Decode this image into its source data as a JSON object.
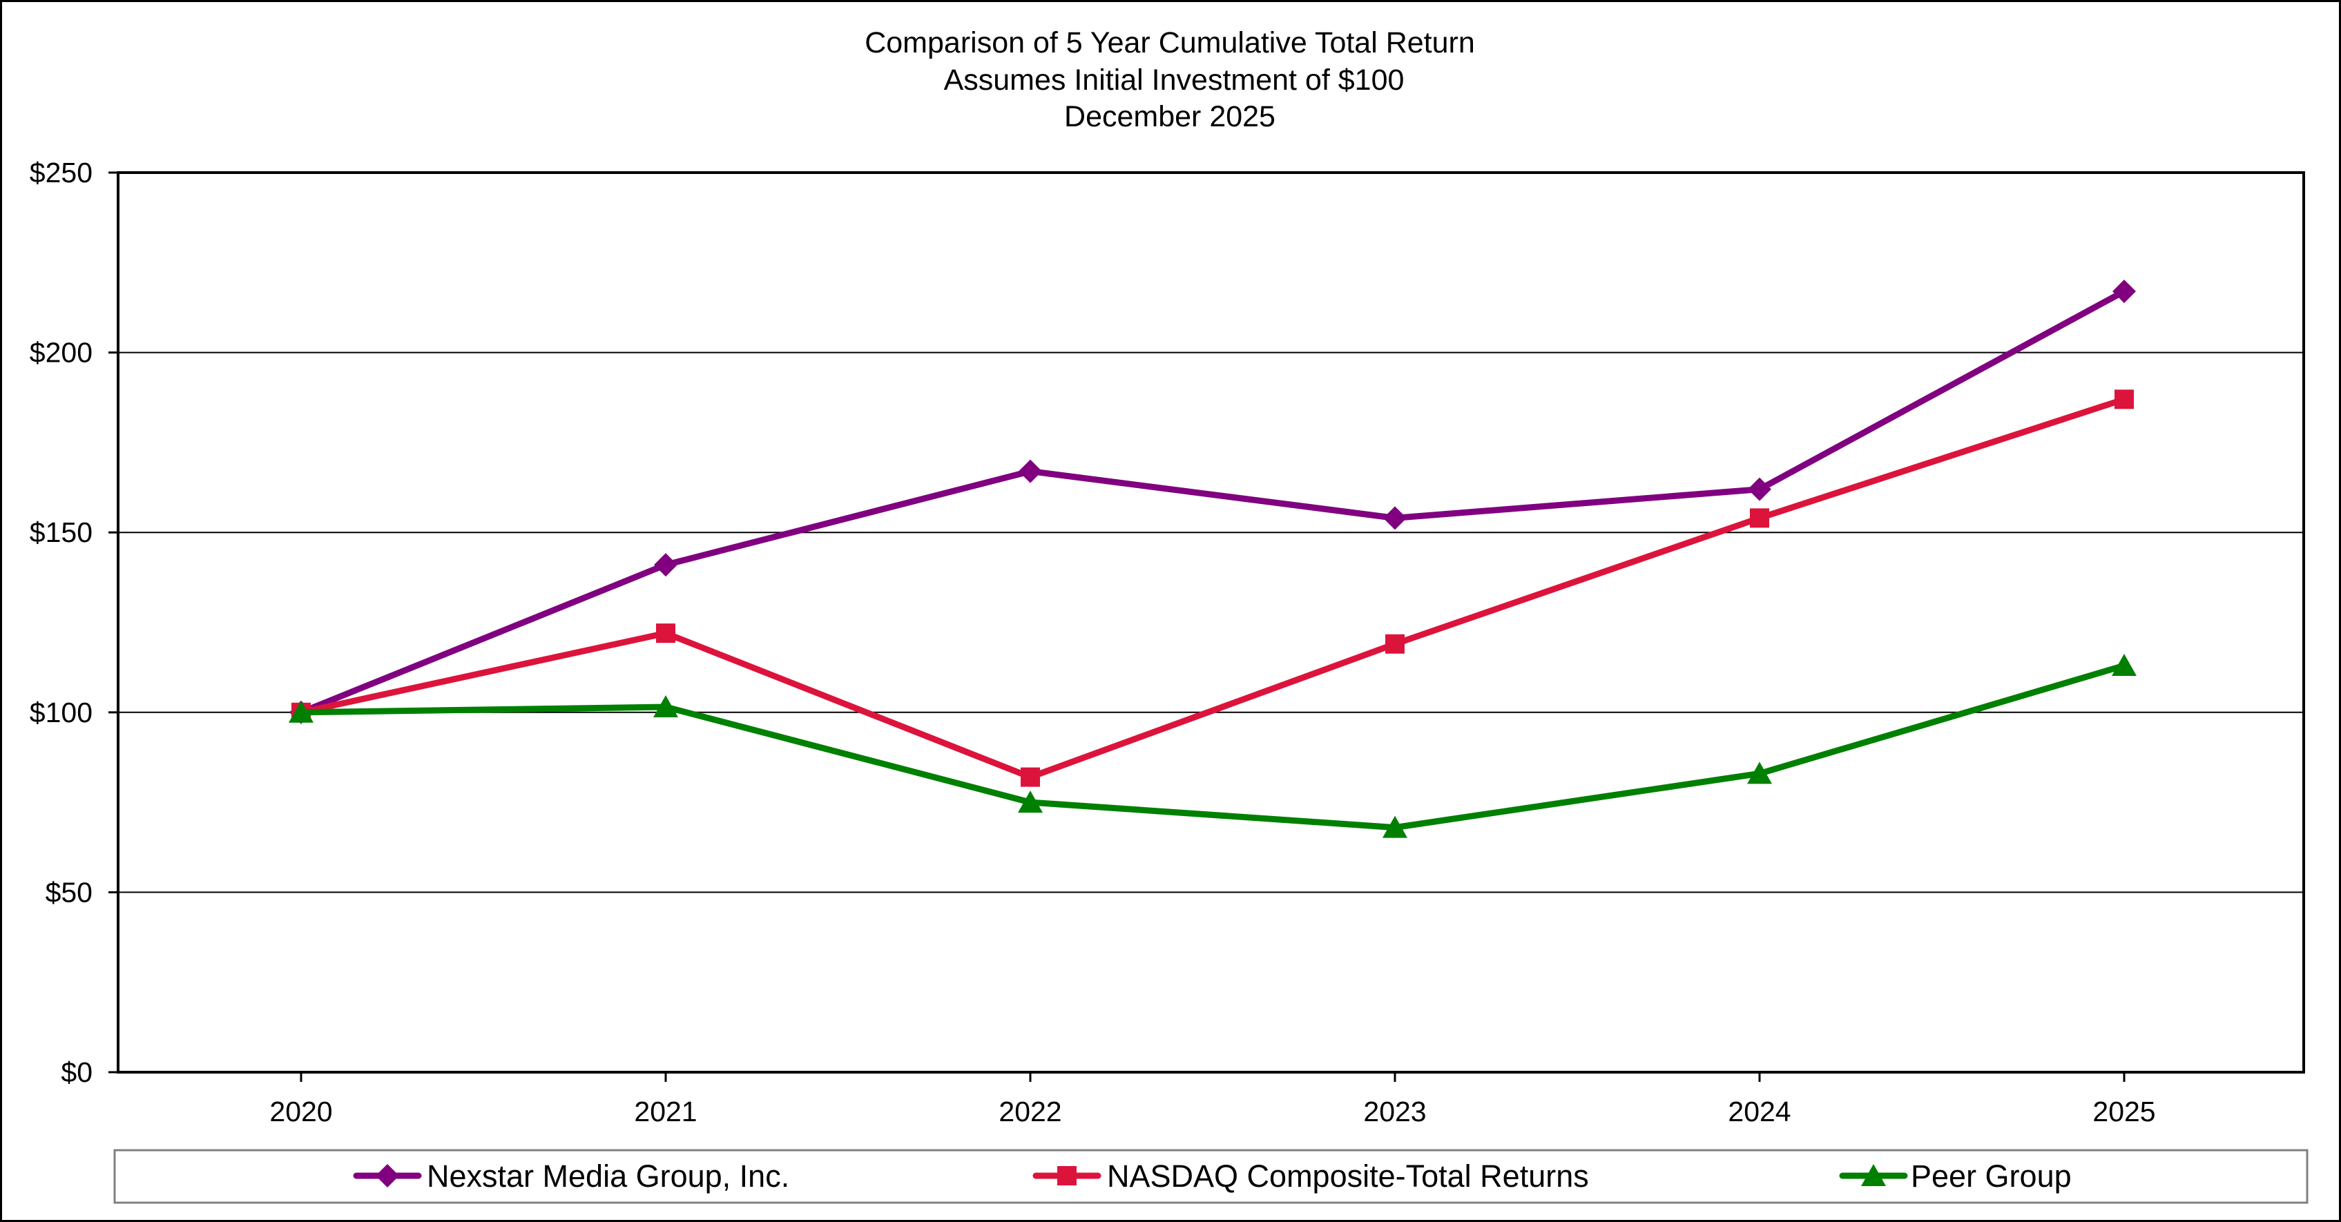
{
  "chart_data": {
    "type": "line",
    "title": [
      "Comparison of 5 Year Cumulative Total Return",
      "Assumes Initial Investment of $100",
      "December 2025"
    ],
    "xlabel": "",
    "ylabel": "",
    "categories": [
      "2020",
      "2021",
      "2022",
      "2023",
      "2024",
      "2025"
    ],
    "ylim": [
      0,
      250
    ],
    "yticks": [
      0,
      50,
      100,
      150,
      200,
      250
    ],
    "ytick_labels": [
      "$0",
      "$50",
      "$100",
      "$150",
      "$200",
      "$250"
    ],
    "grid": "horizontal",
    "legend_position": "bottom",
    "series": [
      {
        "name": "Nexstar Media Group, Inc.",
        "values": [
          100,
          141,
          167,
          154,
          162,
          217
        ],
        "color": "#800080",
        "marker": "diamond"
      },
      {
        "name": "NASDAQ Composite-Total Returns",
        "values": [
          100,
          122,
          82,
          119,
          154,
          187
        ],
        "color": "#DC143C",
        "marker": "square"
      },
      {
        "name": "Peer Group",
        "values": [
          100,
          101.5,
          75,
          68,
          83,
          113
        ],
        "color": "#008000",
        "marker": "triangle"
      }
    ]
  }
}
